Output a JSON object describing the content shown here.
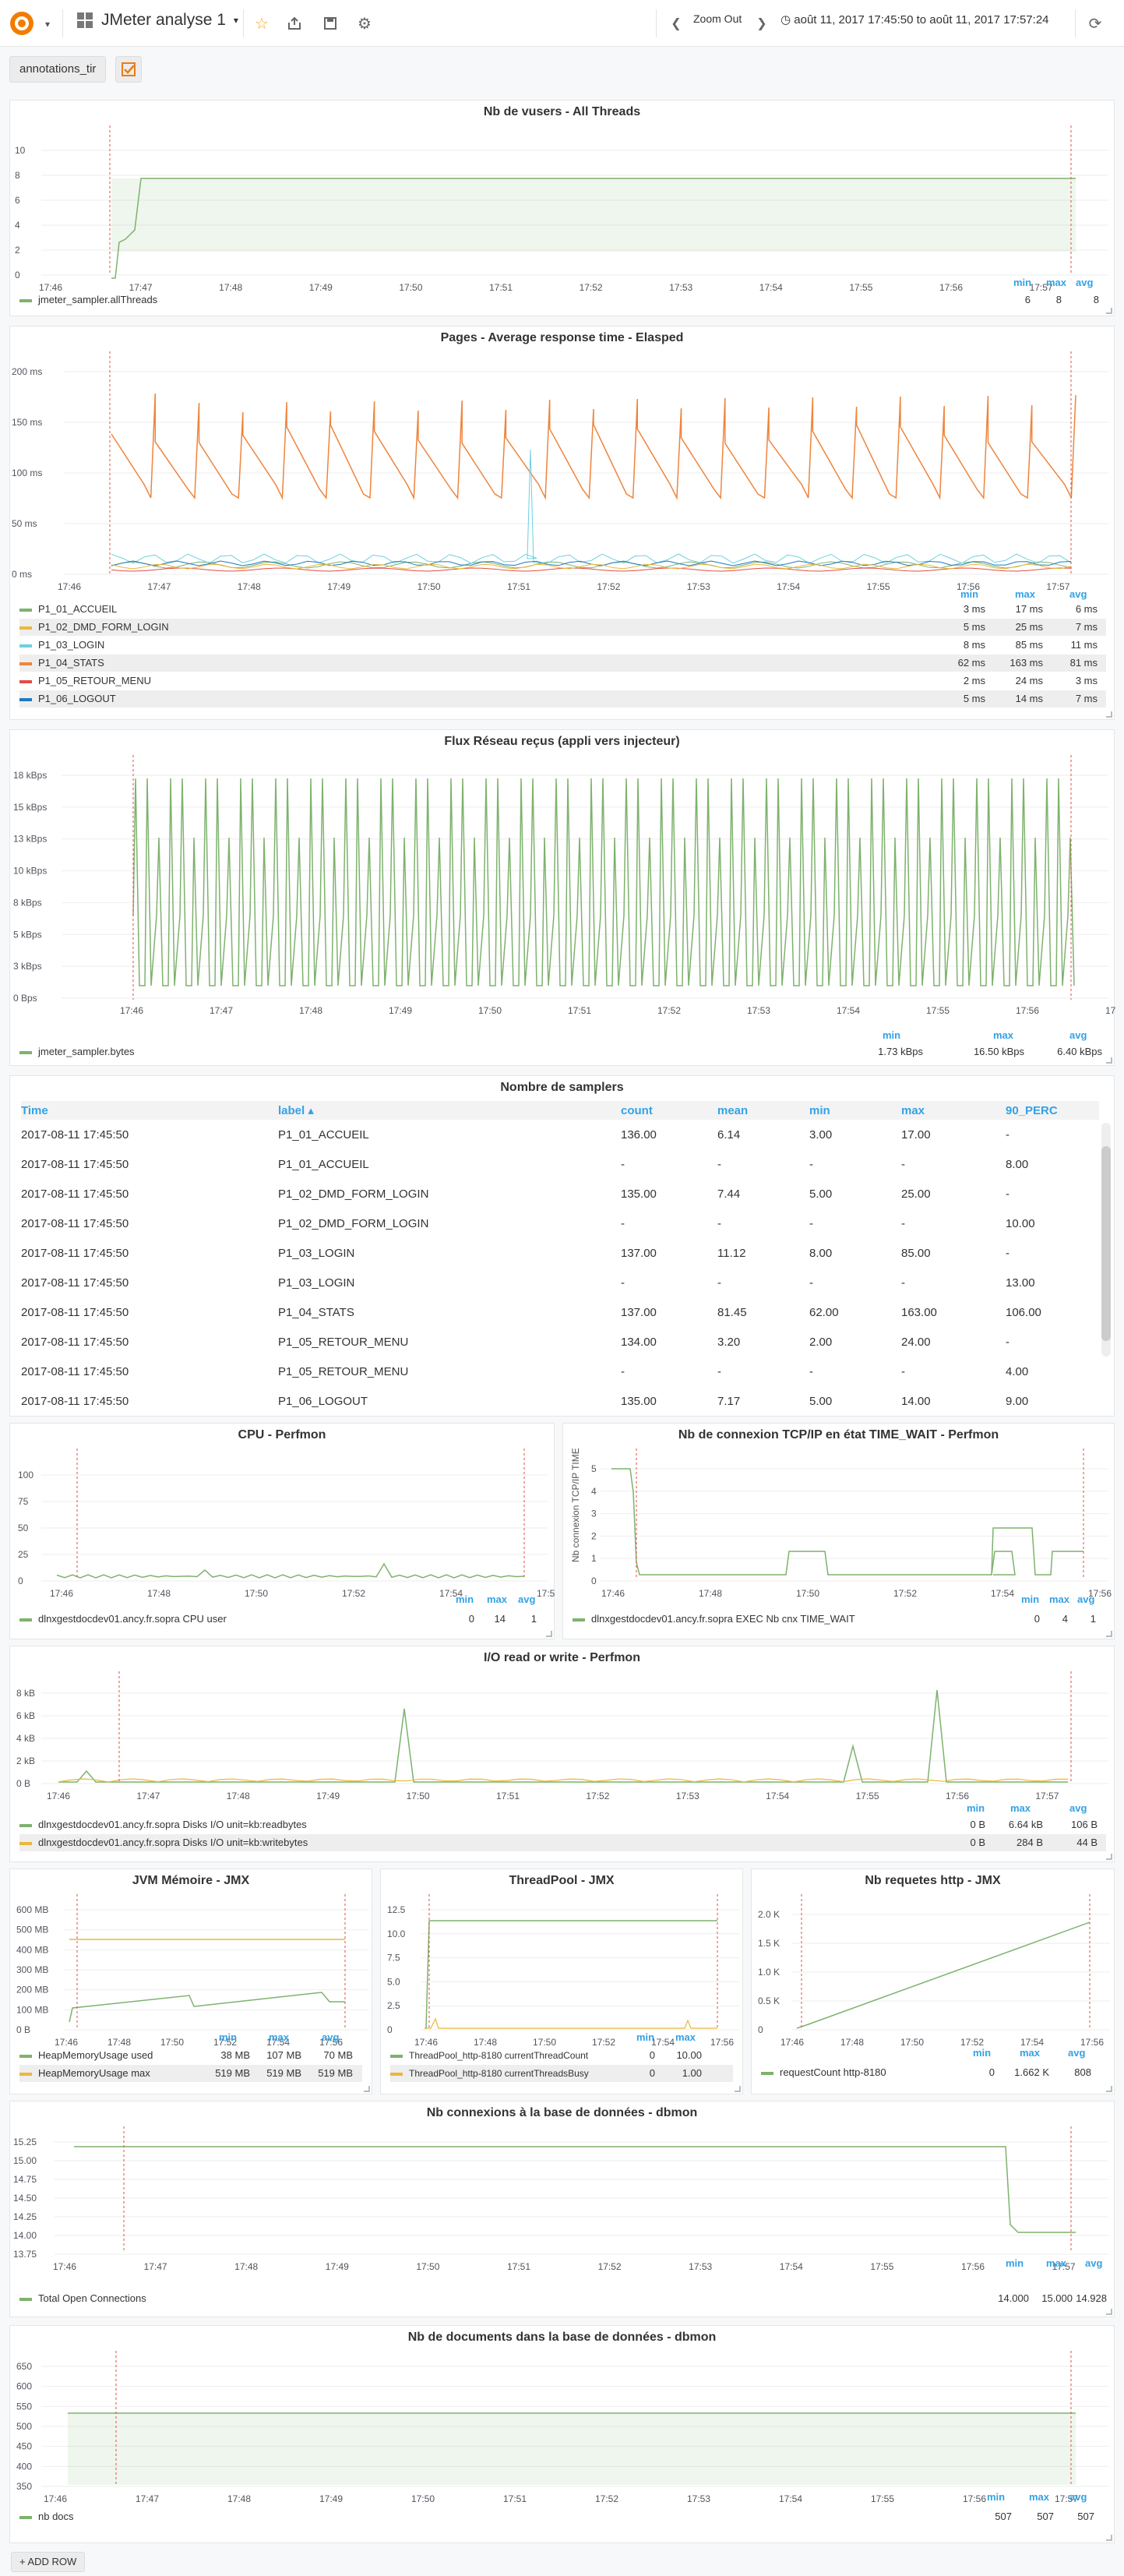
{
  "toolbar": {
    "dashboard_title": "JMeter analyse 1",
    "zoom_out": "Zoom Out",
    "time_range": "août 11, 2017 17:45:50 to août 11, 2017 17:57:24"
  },
  "annotations": {
    "label": "annotations_tir"
  },
  "time_ticks": [
    "17:46",
    "17:47",
    "17:48",
    "17:49",
    "17:50",
    "17:51",
    "17:52",
    "17:53",
    "17:54",
    "17:55",
    "17:56",
    "17:57"
  ],
  "time_ticks_2m": [
    "17:46",
    "17:48",
    "17:50",
    "17:52",
    "17:54",
    "17:56"
  ],
  "stat_heads": {
    "min": "min",
    "max": "max",
    "avg": "avg"
  },
  "vusers": {
    "title": "Nb de vusers - All Threads",
    "y_ticks": [
      "10",
      "8",
      "6",
      "4",
      "2",
      "0"
    ],
    "legend": [
      {
        "name": "jmeter_sampler.allThreads",
        "min": "6",
        "max": "8",
        "avg": "8",
        "color": "#7eb26d"
      }
    ]
  },
  "response": {
    "title": "Pages - Average response time - Elasped",
    "y_ticks": [
      "200 ms",
      "150 ms",
      "100 ms",
      "50 ms",
      "0 ms"
    ],
    "legend": [
      {
        "name": "P1_01_ACCUEIL",
        "min": "3 ms",
        "max": "17 ms",
        "avg": "6 ms",
        "color": "#7eb26d"
      },
      {
        "name": "P1_02_DMD_FORM_LOGIN",
        "min": "5 ms",
        "max": "25 ms",
        "avg": "7 ms",
        "color": "#eab839"
      },
      {
        "name": "P1_03_LOGIN",
        "min": "8 ms",
        "max": "85 ms",
        "avg": "11 ms",
        "color": "#6ed0e0"
      },
      {
        "name": "P1_04_STATS",
        "min": "62 ms",
        "max": "163 ms",
        "avg": "81 ms",
        "color": "#ef843c"
      },
      {
        "name": "P1_05_RETOUR_MENU",
        "min": "2 ms",
        "max": "24 ms",
        "avg": "3 ms",
        "color": "#e24d42"
      },
      {
        "name": "P1_06_LOGOUT",
        "min": "5 ms",
        "max": "14 ms",
        "avg": "7 ms",
        "color": "#1f78c1"
      }
    ]
  },
  "network": {
    "title": "Flux Réseau reçus (appli vers injecteur)",
    "y_ticks": [
      "18 kBps",
      "15 kBps",
      "13 kBps",
      "10 kBps",
      "8 kBps",
      "5 kBps",
      "3 kBps",
      "0 Bps"
    ],
    "legend": [
      {
        "name": "jmeter_sampler.bytes",
        "min": "1.73 kBps",
        "max": "16.50 kBps",
        "avg": "6.40 kBps",
        "color": "#7eb26d"
      }
    ]
  },
  "samplers": {
    "title": "Nombre de samplers",
    "columns": [
      "Time",
      "label ▴",
      "count",
      "mean",
      "min",
      "max",
      "90_PERC"
    ],
    "rows": [
      [
        "2017-08-11 17:45:50",
        "P1_01_ACCUEIL",
        "136.00",
        "6.14",
        "3.00",
        "17.00",
        "-"
      ],
      [
        "2017-08-11 17:45:50",
        "P1_01_ACCUEIL",
        "-",
        "-",
        "-",
        "-",
        "8.00"
      ],
      [
        "2017-08-11 17:45:50",
        "P1_02_DMD_FORM_LOGIN",
        "135.00",
        "7.44",
        "5.00",
        "25.00",
        "-"
      ],
      [
        "2017-08-11 17:45:50",
        "P1_02_DMD_FORM_LOGIN",
        "-",
        "-",
        "-",
        "-",
        "10.00"
      ],
      [
        "2017-08-11 17:45:50",
        "P1_03_LOGIN",
        "137.00",
        "11.12",
        "8.00",
        "85.00",
        "-"
      ],
      [
        "2017-08-11 17:45:50",
        "P1_03_LOGIN",
        "-",
        "-",
        "-",
        "-",
        "13.00"
      ],
      [
        "2017-08-11 17:45:50",
        "P1_04_STATS",
        "137.00",
        "81.45",
        "62.00",
        "163.00",
        "106.00"
      ],
      [
        "2017-08-11 17:45:50",
        "P1_05_RETOUR_MENU",
        "134.00",
        "3.20",
        "2.00",
        "24.00",
        "-"
      ],
      [
        "2017-08-11 17:45:50",
        "P1_05_RETOUR_MENU",
        "-",
        "-",
        "-",
        "-",
        "4.00"
      ],
      [
        "2017-08-11 17:45:50",
        "P1_06_LOGOUT",
        "135.00",
        "7.17",
        "5.00",
        "14.00",
        "9.00"
      ]
    ]
  },
  "cpu": {
    "title": "CPU - Perfmon",
    "y_ticks": [
      "100",
      "75",
      "50",
      "25",
      "0"
    ],
    "legend": [
      {
        "name": "dlnxgestdocdev01.ancy.fr.sopra CPU user",
        "min": "0",
        "max": "14",
        "avg": "1",
        "color": "#7eb26d"
      }
    ]
  },
  "tcp": {
    "title": "Nb de connexion TCP/IP en état TIME_WAIT - Perfmon",
    "y_label": "Nb connexion TCP/IP TIME WAIT",
    "y_ticks": [
      "5",
      "4",
      "3",
      "2",
      "1",
      "0"
    ],
    "legend": [
      {
        "name": "dlnxgestdocdev01.ancy.fr.sopra EXEC Nb cnx TIME_WAIT",
        "min": "0",
        "max": "4",
        "avg": "1",
        "color": "#7eb26d"
      }
    ]
  },
  "io": {
    "title": "I/O read or write - Perfmon",
    "y_ticks": [
      "8 kB",
      "6 kB",
      "4 kB",
      "2 kB",
      "0 B"
    ],
    "legend": [
      {
        "name": "dlnxgestdocdev01.ancy.fr.sopra Disks I/O unit=kb:readbytes",
        "min": "0 B",
        "max": "6.64 kB",
        "avg": "106 B",
        "color": "#7eb26d"
      },
      {
        "name": "dlnxgestdocdev01.ancy.fr.sopra Disks I/O unit=kb:writebytes",
        "min": "0 B",
        "max": "284 B",
        "avg": "44 B",
        "color": "#eab839"
      }
    ]
  },
  "jvm": {
    "title": "JVM Mémoire - JMX",
    "y_ticks": [
      "600 MB",
      "500 MB",
      "400 MB",
      "300 MB",
      "200 MB",
      "100 MB",
      "0 B"
    ],
    "legend": [
      {
        "name": "HeapMemoryUsage used",
        "min": "38 MB",
        "max": "107 MB",
        "avg": "70 MB",
        "color": "#7eb26d"
      },
      {
        "name": "HeapMemoryUsage max",
        "min": "519 MB",
        "max": "519 MB",
        "avg": "519 MB",
        "color": "#eab839"
      }
    ]
  },
  "threadpool": {
    "title": "ThreadPool - JMX",
    "y_ticks": [
      "12.5",
      "10.0",
      "7.5",
      "5.0",
      "2.5",
      "0"
    ],
    "legend": [
      {
        "name": "ThreadPool_http-8180 currentThreadCount",
        "min": "0",
        "max": "10.00",
        "color": "#7eb26d"
      },
      {
        "name": "ThreadPool_http-8180 currentThreadsBusy",
        "min": "0",
        "max": "1.00",
        "color": "#eab839"
      }
    ]
  },
  "http": {
    "title": "Nb requetes http - JMX",
    "y_ticks": [
      "2.0 K",
      "1.5 K",
      "1.0 K",
      "0.5 K",
      "0"
    ],
    "legend": [
      {
        "name": "requestCount http-8180",
        "min": "0",
        "max": "1.662 K",
        "avg": "808",
        "color": "#7eb26d"
      }
    ]
  },
  "dbconn": {
    "title": "Nb connexions à la base de données - dbmon",
    "y_ticks": [
      "15.25",
      "15.00",
      "14.75",
      "14.50",
      "14.25",
      "14.00",
      "13.75"
    ],
    "legend": [
      {
        "name": "Total Open Connections",
        "min": "14.000",
        "max": "15.000",
        "avg": "14.928",
        "color": "#7eb26d"
      }
    ]
  },
  "dbdocs": {
    "title": "Nb de documents dans la base de données - dbmon",
    "y_ticks": [
      "650",
      "600",
      "550",
      "500",
      "450",
      "400",
      "350"
    ],
    "legend": [
      {
        "name": "nb docs",
        "min": "507",
        "max": "507",
        "avg": "507",
        "color": "#7eb26d"
      }
    ]
  },
  "add_row": "+ ADD ROW"
}
